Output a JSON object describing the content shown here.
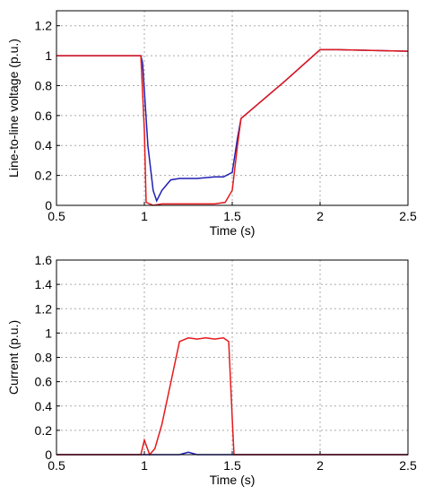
{
  "chart_data": [
    {
      "type": "line",
      "xlabel": "Time (s)",
      "ylabel": "Line-to-line voltage (p.u.)",
      "xlim": [
        0.5,
        2.5
      ],
      "xticks": [
        0.5,
        1,
        1.5,
        2,
        2.5
      ],
      "ylim": [
        0,
        1.3
      ],
      "yticks": [
        0,
        0.2,
        0.4,
        0.6,
        0.8,
        1,
        1.2
      ],
      "grid": true,
      "series": [
        {
          "color": "#1f1fb4",
          "x": [
            0.5,
            0.98,
            0.99,
            1.02,
            1.05,
            1.07,
            1.1,
            1.15,
            1.2,
            1.3,
            1.4,
            1.45,
            1.5,
            1.53,
            1.55,
            1.6,
            1.8,
            2.0,
            2.1,
            2.5
          ],
          "values": [
            1,
            1,
            0.95,
            0.4,
            0.1,
            0.03,
            0.1,
            0.17,
            0.18,
            0.18,
            0.19,
            0.19,
            0.22,
            0.45,
            0.58,
            0.63,
            0.83,
            1.04,
            1.04,
            1.03
          ]
        },
        {
          "color": "#e41a1c",
          "x": [
            0.5,
            0.98,
            1.0,
            1.01,
            1.05,
            1.1,
            1.4,
            1.46,
            1.5,
            1.53,
            1.55,
            1.6,
            1.8,
            2.0,
            2.1,
            2.5
          ],
          "values": [
            1,
            1,
            0.5,
            0.02,
            0,
            0.01,
            0.01,
            0.02,
            0.1,
            0.4,
            0.58,
            0.63,
            0.83,
            1.04,
            1.04,
            1.03
          ]
        }
      ]
    },
    {
      "type": "line",
      "xlabel": "Time (s)",
      "ylabel": "Current (p.u.)",
      "xlim": [
        0.5,
        2.5
      ],
      "xticks": [
        0.5,
        1,
        1.5,
        2,
        2.5
      ],
      "ylim": [
        0,
        1.6
      ],
      "yticks": [
        0,
        0.2,
        0.4,
        0.6,
        0.8,
        1,
        1.2,
        1.4,
        1.6
      ],
      "grid": true,
      "series": [
        {
          "color": "#1f1fb4",
          "x": [
            0.5,
            1.2,
            1.25,
            1.3,
            2.5
          ],
          "values": [
            0,
            0,
            0.02,
            0,
            0
          ]
        },
        {
          "color": "#e41a1c",
          "x": [
            0.5,
            0.98,
            1.0,
            1.03,
            1.06,
            1.1,
            1.2,
            1.25,
            1.3,
            1.35,
            1.4,
            1.45,
            1.48,
            1.5,
            1.51,
            2.5
          ],
          "values": [
            0,
            0,
            0.12,
            0,
            0.05,
            0.25,
            0.93,
            0.96,
            0.95,
            0.96,
            0.95,
            0.96,
            0.93,
            0.3,
            0,
            0
          ]
        }
      ]
    }
  ]
}
